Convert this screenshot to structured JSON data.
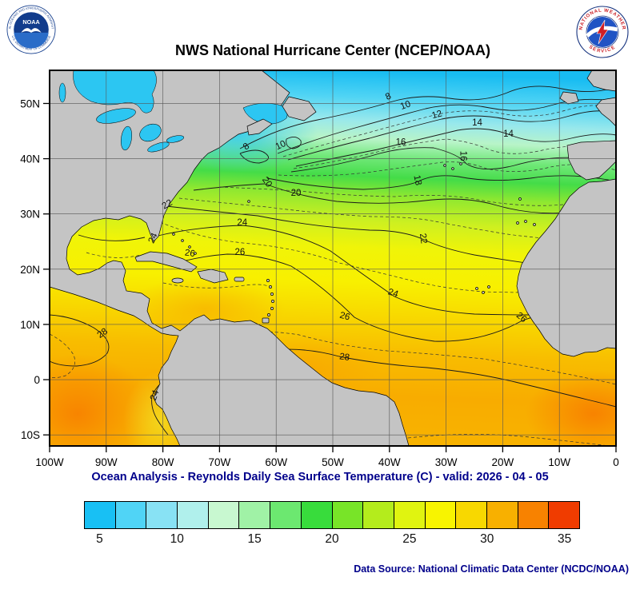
{
  "title": "NWS National Hurricane Center (NCEP/NOAA)",
  "caption": "Ocean Analysis - Reynolds Daily Sea Surface Temperature (C) - valid: 2026 - 04 - 05",
  "data_source": "Data Source: National Climatic Data Center (NCDC/NOAA)",
  "logos": {
    "noaa": {
      "name": "NOAA",
      "ring_top": "NATIONAL OCEANIC AND ATMOSPHERIC ADMINISTRATION",
      "ring_bottom": "U.S. DEPARTMENT OF COMMERCE"
    },
    "nws": {
      "ring_top": "NATIONAL WEATHER",
      "ring_bottom": "SERVICE"
    }
  },
  "map": {
    "bounds": {
      "lon_min": -100,
      "lon_max": 0,
      "lat_min": -12,
      "lat_max": 56
    },
    "lat_ticks": [
      {
        "label": "50N",
        "value": 50
      },
      {
        "label": "40N",
        "value": 40
      },
      {
        "label": "30N",
        "value": 30
      },
      {
        "label": "20N",
        "value": 20
      },
      {
        "label": "10N",
        "value": 10
      },
      {
        "label": "0",
        "value": 0
      },
      {
        "label": "10S",
        "value": -10
      }
    ],
    "lon_ticks": [
      {
        "label": "100W",
        "value": -100
      },
      {
        "label": "90W",
        "value": -90
      },
      {
        "label": "80W",
        "value": -80
      },
      {
        "label": "70W",
        "value": -70
      },
      {
        "label": "60W",
        "value": -60
      },
      {
        "label": "50W",
        "value": -50
      },
      {
        "label": "40W",
        "value": -40
      },
      {
        "label": "30W",
        "value": -30
      },
      {
        "label": "20W",
        "value": -20
      },
      {
        "label": "10W",
        "value": -10
      },
      {
        "label": "0",
        "value": 0
      }
    ],
    "isotherm_interval_c": 2,
    "contour_labels": [
      {
        "t": "8",
        "lon": -65.0,
        "lat": 41.8,
        "rot": -35
      },
      {
        "t": "10",
        "lon": -59.0,
        "lat": 42.0,
        "rot": -25
      },
      {
        "t": "8",
        "lon": -40.0,
        "lat": 50.8,
        "rot": -25
      },
      {
        "t": "10",
        "lon": -37.0,
        "lat": 49.2,
        "rot": -20
      },
      {
        "t": "12",
        "lon": -31.5,
        "lat": 47.5,
        "rot": -15
      },
      {
        "t": "14",
        "lon": -24.5,
        "lat": 46.0,
        "rot": 0
      },
      {
        "t": "14",
        "lon": -19.0,
        "lat": 44.0,
        "rot": 0
      },
      {
        "t": "16",
        "lon": -38.0,
        "lat": 42.5,
        "rot": 0
      },
      {
        "t": "16",
        "lon": -27.5,
        "lat": 40.5,
        "rot": 90
      },
      {
        "t": "18",
        "lon": -35.5,
        "lat": 36.0,
        "rot": 78
      },
      {
        "t": "20",
        "lon": -62.0,
        "lat": 35.5,
        "rot": 55
      },
      {
        "t": "20",
        "lon": -56.5,
        "lat": 33.3,
        "rot": 0
      },
      {
        "t": "22",
        "lon": -79.0,
        "lat": 31.3,
        "rot": -30
      },
      {
        "t": "22",
        "lon": -34.5,
        "lat": 25.5,
        "rot": 82
      },
      {
        "t": "24",
        "lon": -81.3,
        "lat": 25.4,
        "rot": -65
      },
      {
        "t": "24",
        "lon": -66.0,
        "lat": 27.9,
        "rot": 0
      },
      {
        "t": "24",
        "lon": -39.5,
        "lat": 15.2,
        "rot": 18
      },
      {
        "t": "26",
        "lon": -75.3,
        "lat": 22.4,
        "rot": 8
      },
      {
        "t": "26",
        "lon": -66.4,
        "lat": 22.6,
        "rot": 0
      },
      {
        "t": "26",
        "lon": -48.0,
        "lat": 11.0,
        "rot": 15
      },
      {
        "t": "26",
        "lon": -17.0,
        "lat": 10.9,
        "rot": 40
      },
      {
        "t": "28",
        "lon": -90.4,
        "lat": 8.0,
        "rot": -35
      },
      {
        "t": "28",
        "lon": -48.0,
        "lat": 3.6,
        "rot": 8
      },
      {
        "t": "24",
        "lon": -81.0,
        "lat": -3.0,
        "rot": -70
      }
    ]
  },
  "colorbar": {
    "min": 4,
    "max": 36,
    "tick_labels": [
      "5",
      "10",
      "15",
      "20",
      "25",
      "30",
      "35"
    ],
    "tick_values": [
      5,
      10,
      15,
      20,
      25,
      30,
      35
    ],
    "colors": [
      "#18c0f4",
      "#50d4f6",
      "#88e2f4",
      "#b0f0ec",
      "#c8f8d0",
      "#a0f2a6",
      "#6ce870",
      "#38dc3c",
      "#78e428",
      "#b4ec1c",
      "#e0f410",
      "#f8f400",
      "#f8d800",
      "#f8b000",
      "#f88200",
      "#f03c00"
    ]
  }
}
